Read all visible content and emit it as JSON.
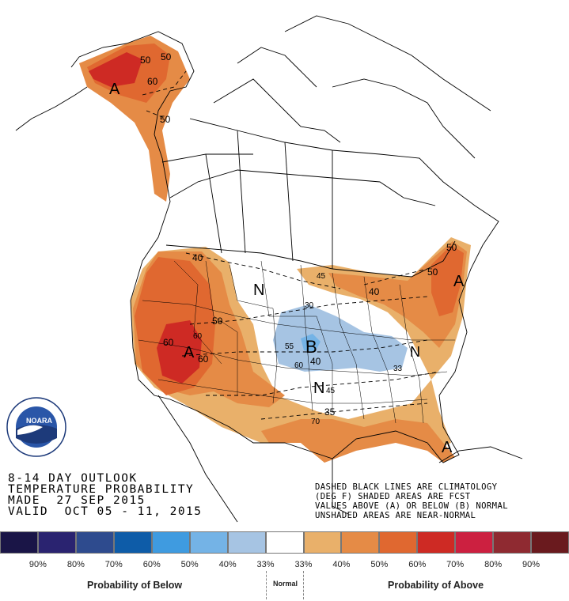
{
  "outlook": {
    "line1": "8-14 DAY OUTLOOK",
    "line2": "TEMPERATURE PROBABILITY",
    "line3": "MADE  27 SEP 2015",
    "line4": "VALID  OCT 05 - 11, 2015"
  },
  "legend_note": {
    "line1": "DASHED BLACK LINES ARE CLIMATOLOGY",
    "line2": "(DEG F) SHADED AREAS ARE FCST",
    "line3": "VALUES ABOVE (A) OR BELOW (B) NORMAL",
    "line4": "UNSHADED AREAS ARE NEAR-NORMAL"
  },
  "logo_text": "NOARA",
  "map_labels": {
    "A": "A",
    "B": "B",
    "N": "N",
    "c30": "30",
    "c33": "33",
    "c35": "35",
    "c40": "40",
    "c45": "45",
    "c50": "50",
    "c55": "55",
    "c60": "60",
    "c70": "70"
  },
  "scale": {
    "colors": [
      "#1a1547",
      "#2a2370",
      "#2e4b8e",
      "#0e5ca8",
      "#3f9be0",
      "#74b3e6",
      "#a6c4e3",
      "#ffffff",
      "#e9b06a",
      "#e58b46",
      "#e06830",
      "#ce2a24",
      "#cc2040",
      "#8f2a31",
      "#6a1a1e"
    ],
    "labels": [
      "90%",
      "80%",
      "70%",
      "60%",
      "50%",
      "40%",
      "33%",
      "33%",
      "40%",
      "50%",
      "60%",
      "70%",
      "80%",
      "90%"
    ],
    "below_label": "Probability of Below",
    "normal_label": "Normal",
    "above_label": "Probability of Above"
  }
}
